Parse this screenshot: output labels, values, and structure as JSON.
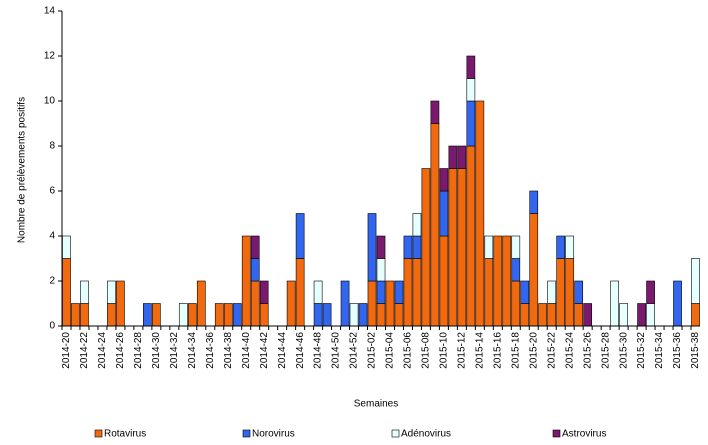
{
  "chart_data": {
    "type": "stacked_bar",
    "y_label": "Nombre de prélèvements positifs",
    "x_label": "Semaines",
    "categories": [
      "2014-20",
      null,
      "2014-22",
      null,
      "2014-24",
      null,
      "2014-26",
      null,
      "2014-28",
      null,
      "2014-30",
      null,
      "2014-32",
      null,
      "2014-34",
      null,
      "2014-36",
      null,
      "2014-38",
      null,
      "2014-40",
      null,
      "2014-42",
      null,
      "2014-44",
      null,
      "2014-46",
      null,
      "2014-48",
      null,
      "2014-50",
      null,
      "2014-52",
      null,
      "2015-02",
      null,
      "2015-04",
      null,
      "2015-06",
      null,
      "2015-08",
      null,
      "2015-10",
      null,
      "2015-12",
      null,
      "2015-14",
      null,
      "2015-16",
      null,
      "2015-18",
      null,
      "2015-20",
      null,
      "2015-22",
      null,
      "2015-24",
      null,
      "2015-26",
      null,
      "2015-28",
      null,
      "2015-30",
      null,
      "2015-32",
      null,
      "2015-34",
      null,
      "2015-36",
      null,
      "2015-38"
    ],
    "series": [
      {
        "name": "Rotavirus",
        "color": "#f26a10",
        "values": [
          3,
          1,
          1,
          0,
          0,
          1,
          2,
          0,
          0,
          0,
          1,
          0,
          0,
          0,
          1,
          2,
          0,
          1,
          1,
          0,
          4,
          2,
          1,
          0,
          0,
          2,
          3,
          0,
          0,
          0,
          0,
          0,
          0,
          0,
          2,
          1,
          2,
          1,
          3,
          3,
          7,
          9,
          4,
          7,
          7,
          8,
          10,
          3,
          4,
          4,
          2,
          1,
          5,
          1,
          1,
          3,
          3,
          1,
          0,
          0,
          0,
          0,
          0,
          0,
          0,
          0,
          0,
          0,
          0,
          0,
          1
        ]
      },
      {
        "name": "Norovirus",
        "color": "#3366ee",
        "values": [
          0,
          0,
          0,
          0,
          0,
          0,
          0,
          0,
          0,
          1,
          0,
          0,
          0,
          0,
          0,
          0,
          0,
          0,
          0,
          1,
          0,
          1,
          0,
          0,
          0,
          0,
          2,
          0,
          1,
          1,
          0,
          2,
          0,
          1,
          3,
          1,
          0,
          1,
          1,
          1,
          0,
          0,
          2,
          0,
          0,
          2,
          0,
          0,
          0,
          0,
          1,
          1,
          1,
          0,
          0,
          1,
          0,
          1,
          0,
          0,
          0,
          0,
          0,
          0,
          0,
          0,
          0,
          0,
          2,
          0,
          0
        ]
      },
      {
        "name": "Adénovirus",
        "color": "#e6ffff",
        "values": [
          1,
          0,
          1,
          0,
          0,
          1,
          0,
          0,
          0,
          0,
          0,
          0,
          0,
          1,
          0,
          0,
          0,
          0,
          0,
          0,
          0,
          0,
          0,
          0,
          0,
          0,
          0,
          0,
          1,
          0,
          0,
          0,
          1,
          0,
          0,
          1,
          0,
          0,
          0,
          1,
          0,
          0,
          0,
          0,
          0,
          1,
          0,
          1,
          0,
          0,
          1,
          0,
          0,
          0,
          1,
          0,
          1,
          0,
          0,
          0,
          0,
          2,
          1,
          0,
          0,
          1,
          0,
          0,
          0,
          0,
          2
        ]
      },
      {
        "name": "Astrovirus",
        "color": "#7a1a6e",
        "values": [
          0,
          0,
          0,
          0,
          0,
          0,
          0,
          0,
          0,
          0,
          0,
          0,
          0,
          0,
          0,
          0,
          0,
          0,
          0,
          0,
          0,
          1,
          1,
          0,
          0,
          0,
          0,
          0,
          0,
          0,
          0,
          0,
          0,
          0,
          0,
          1,
          0,
          0,
          0,
          0,
          0,
          1,
          1,
          1,
          1,
          1,
          0,
          0,
          0,
          0,
          0,
          0,
          0,
          0,
          0,
          0,
          0,
          0,
          1,
          0,
          0,
          0,
          0,
          0,
          1,
          1,
          0,
          0,
          0,
          0,
          0
        ]
      }
    ],
    "ylim": [
      0,
      14
    ],
    "yticks": [
      0,
      2,
      4,
      6,
      8,
      10,
      12,
      14
    ]
  }
}
